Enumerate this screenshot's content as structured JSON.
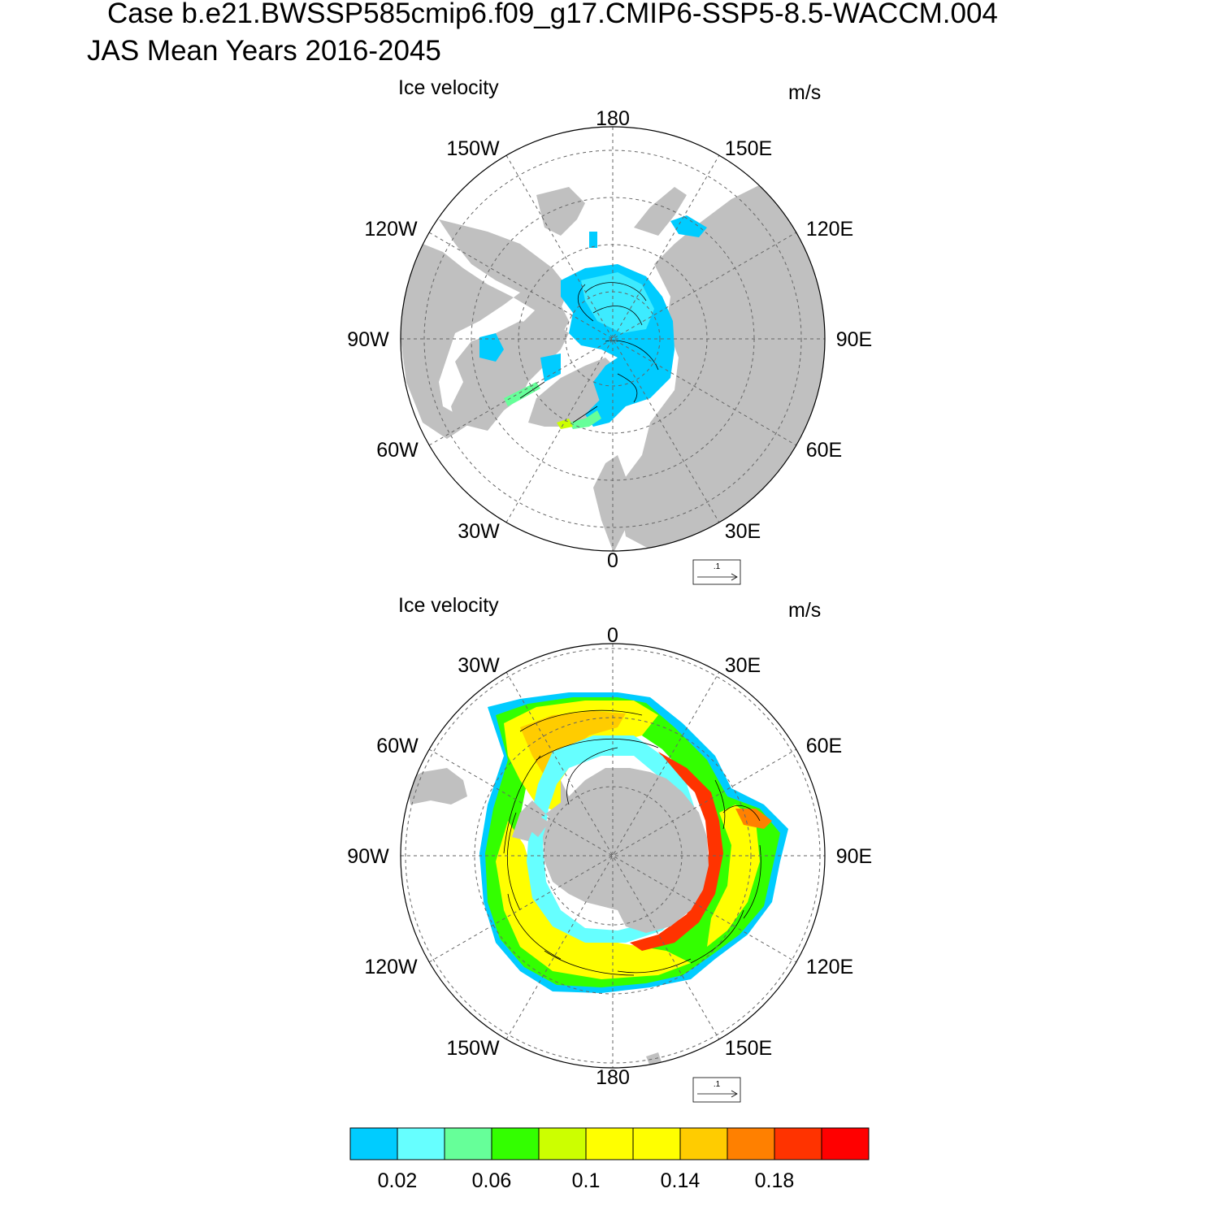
{
  "header": {
    "case_line": "Case b.e21.BWSSP585cmip6.f09_g17.CMIP6-SSP5-8.5-WACCM.004",
    "season_line": "JAS Mean   Years 2016-2045"
  },
  "colors": {
    "land": "#c0c0c0",
    "grid": "#666666",
    "frame": "#000000"
  },
  "panels": [
    {
      "id": "north",
      "hemisphere": "Arctic",
      "title": "Ice velocity",
      "units": "m/s",
      "lon_labels": [
        "180",
        "150E",
        "120E",
        "90E",
        "60E",
        "30E",
        "0",
        "30W",
        "60W",
        "90W",
        "120W",
        "150W"
      ],
      "ref_vector_label": ".1"
    },
    {
      "id": "south",
      "hemisphere": "Antarctic",
      "title": "Ice velocity",
      "units": "m/s",
      "lon_labels": [
        "0",
        "30E",
        "60E",
        "90E",
        "120E",
        "150E",
        "180",
        "150W",
        "120W",
        "90W",
        "60W",
        "30W"
      ],
      "ref_vector_label": ".1"
    }
  ],
  "colorbar": {
    "colors": [
      "#00ccff",
      "#66ffff",
      "#66ff99",
      "#33ff00",
      "#ccff00",
      "#ffff00",
      "#ffff00",
      "#ffcc00",
      "#ff8000",
      "#ff3300",
      "#ff0000"
    ],
    "labels": [
      "0.02",
      "0.06",
      "0.1",
      "0.14",
      "0.18"
    ]
  }
}
